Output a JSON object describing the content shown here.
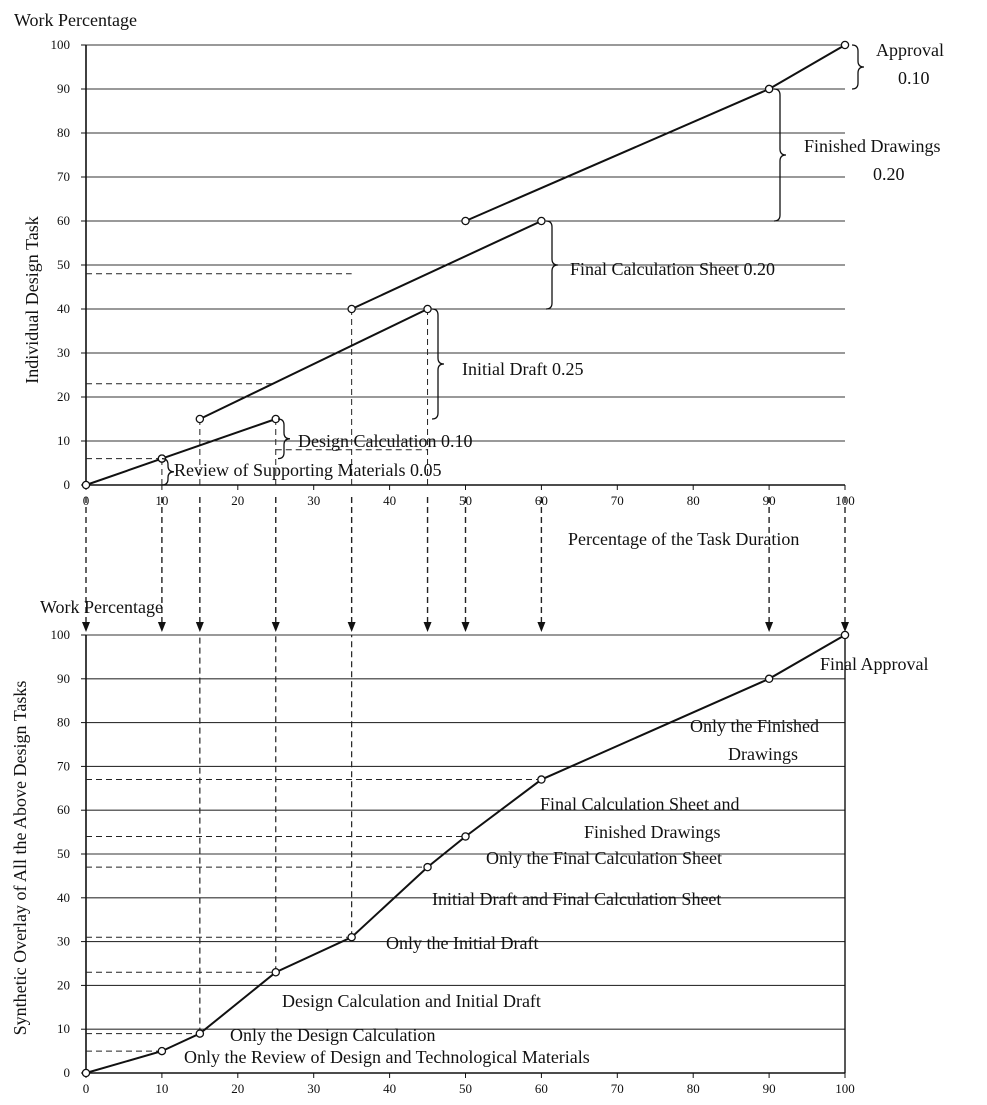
{
  "chart_data": [
    {
      "type": "line",
      "panel": "top",
      "title": "Work Percentage",
      "xlabel": "Percentage of the Task Duration",
      "ylabel": "Individual Design Task",
      "xlim": [
        0,
        100
      ],
      "ylim": [
        0,
        100
      ],
      "x_ticks": [
        "0",
        "10",
        "20",
        "30",
        "40",
        "50",
        "60",
        "70",
        "80",
        "90",
        "100"
      ],
      "y_ticks": [
        "0",
        "10",
        "20",
        "30",
        "40",
        "50",
        "60",
        "70",
        "80",
        "90",
        "100"
      ],
      "grid": "horizontal",
      "segments": [
        {
          "name": "Review of Supporting Materials 0.05",
          "x": [
            0,
            10
          ],
          "y": [
            0,
            6
          ]
        },
        {
          "name": "Design Calculation 0.10",
          "x": [
            10,
            25
          ],
          "y": [
            6,
            15
          ]
        },
        {
          "name": "Initial Draft 0.25",
          "x": [
            15,
            45
          ],
          "y": [
            15,
            40
          ]
        },
        {
          "name": "Final Calculation Sheet 0.20",
          "x": [
            35,
            60
          ],
          "y": [
            40,
            60
          ]
        },
        {
          "name": "Finished Drawings 0.20",
          "x": [
            50,
            90
          ],
          "y": [
            60,
            90
          ]
        },
        {
          "name": "Approval 0.10",
          "x": [
            90,
            100
          ],
          "y": [
            90,
            100
          ]
        }
      ],
      "annotations": [
        {
          "text": "Approval",
          "text2": "0.10"
        },
        {
          "text": "Finished Drawings",
          "text2": "0.20"
        },
        {
          "text": "Final Calculation Sheet 0.20"
        },
        {
          "text": "Initial Draft 0.25"
        },
        {
          "text": "Design Calculation 0.10"
        },
        {
          "text": "Review of Supporting Materials 0.05"
        }
      ]
    },
    {
      "type": "line",
      "panel": "bottom",
      "title": "Work Percentage",
      "xlabel": "",
      "ylabel": "Synthetic Overlay of All the Above Design Tasks",
      "xlim": [
        0,
        100
      ],
      "ylim": [
        0,
        100
      ],
      "x_ticks": [
        "0",
        "10",
        "20",
        "30",
        "40",
        "50",
        "60",
        "70",
        "80",
        "90",
        "100"
      ],
      "y_ticks": [
        "0",
        "10",
        "20",
        "30",
        "40",
        "50",
        "60",
        "70",
        "80",
        "90",
        "100"
      ],
      "grid": "horizontal",
      "series": [
        {
          "x": [
            0,
            10,
            15,
            25,
            35,
            45,
            50,
            60,
            90,
            100
          ],
          "y": [
            0,
            5,
            9,
            23,
            31,
            47,
            54,
            67,
            90,
            100
          ]
        }
      ],
      "annotations": [
        {
          "text": "Final Approval"
        },
        {
          "text": "Only the Finished",
          "text2": "Drawings"
        },
        {
          "text": "Final Calculation Sheet and",
          "text2": "Finished Drawings"
        },
        {
          "text": "Only the Final Calculation Sheet"
        },
        {
          "text": "Initial Draft and Final Calculation Sheet"
        },
        {
          "text": "Only the Initial Draft"
        },
        {
          "text": "Design Calculation and Initial Draft"
        },
        {
          "text": "Only the Design Calculation"
        },
        {
          "text": "Only the Review of Design and Technological Materials"
        }
      ]
    }
  ]
}
